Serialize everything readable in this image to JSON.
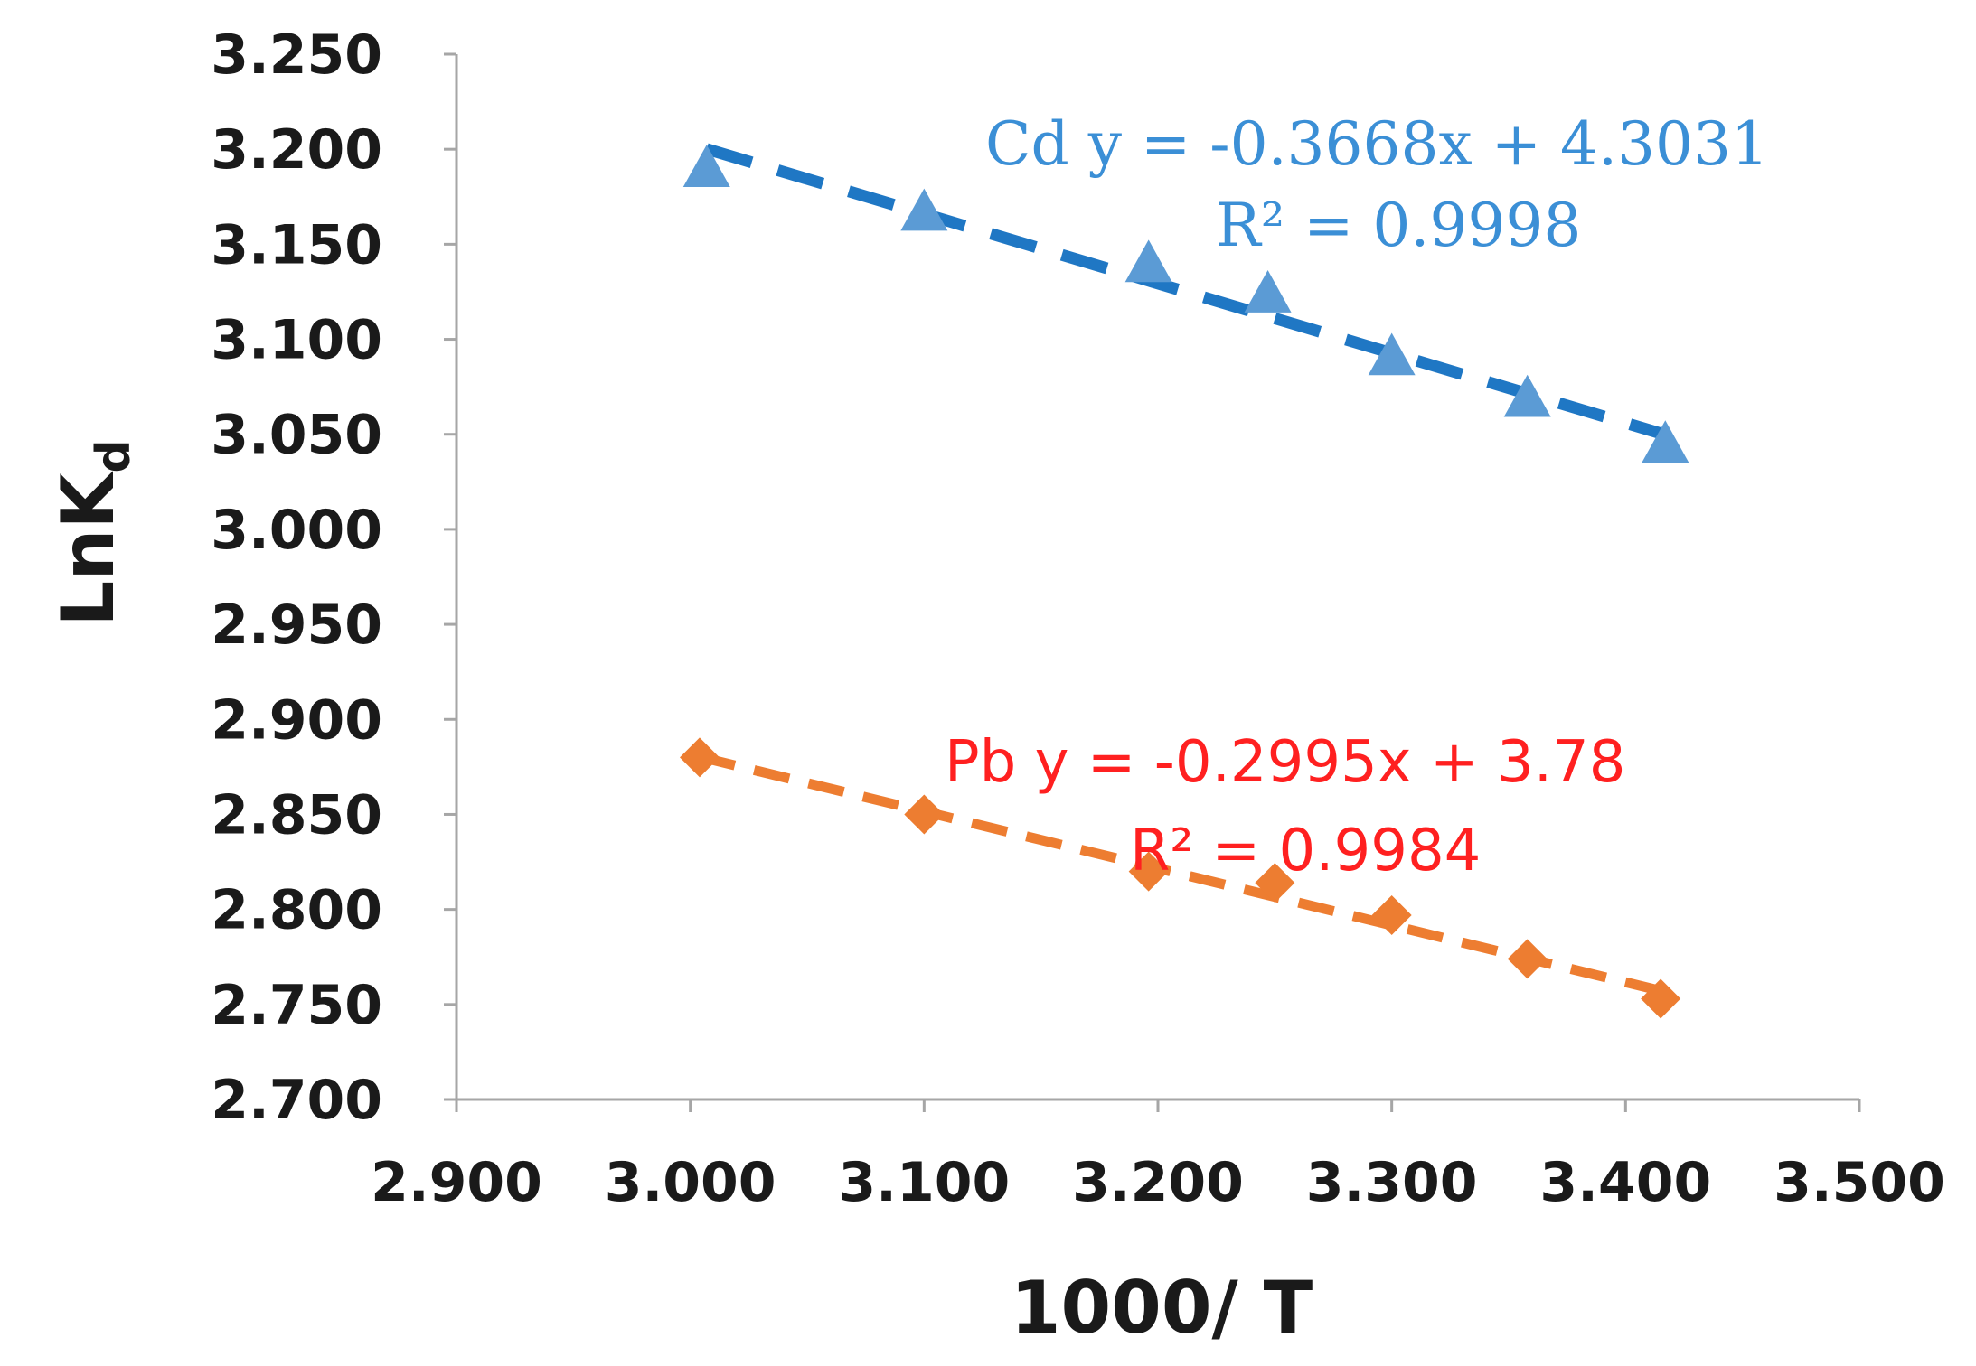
{
  "chart_data": {
    "type": "scatter",
    "title": "",
    "xlabel": "1000/ T",
    "ylabel": "LnK",
    "ylabel_subscript": "d",
    "xlim": [
      2.9,
      3.5
    ],
    "ylim": [
      2.7,
      3.25
    ],
    "x_ticks": [
      "2.900",
      "3.000",
      "3.100",
      "3.200",
      "3.300",
      "3.400",
      "3.500"
    ],
    "y_ticks": [
      "2.700",
      "2.750",
      "2.800",
      "2.850",
      "2.900",
      "2.950",
      "3.000",
      "3.050",
      "3.100",
      "3.150",
      "3.200",
      "3.250"
    ],
    "grid": false,
    "series": [
      {
        "name": "Cd",
        "marker": "triangle",
        "color": "#5b9bd5",
        "trend_color": "#1f77c4",
        "x": [
          3.007,
          3.1,
          3.196,
          3.247,
          3.3,
          3.358,
          3.417
        ],
        "y": [
          3.19,
          3.167,
          3.14,
          3.124,
          3.091,
          3.069,
          3.045
        ],
        "trendline": {
          "slope": -0.3668,
          "intercept": 4.3031
        },
        "equation_label": "Cd  y = -0.3668x + 4.3031",
        "r2_label": "R² = 0.9998",
        "label_color": "#3b8fd6"
      },
      {
        "name": "Pb",
        "marker": "diamond",
        "color": "#ed7d31",
        "trend_color": "#ed7d31",
        "x": [
          3.004,
          3.1,
          3.196,
          3.25,
          3.3,
          3.358,
          3.415
        ],
        "y": [
          2.88,
          2.85,
          2.82,
          2.814,
          2.797,
          2.774,
          2.753
        ],
        "trendline": {
          "slope": -0.2995,
          "intercept": 3.78
        },
        "equation_label": "Pb  y = -0.2995x + 3.78",
        "r2_label": "R² = 0.9984",
        "label_color": "#ff2020"
      }
    ]
  }
}
